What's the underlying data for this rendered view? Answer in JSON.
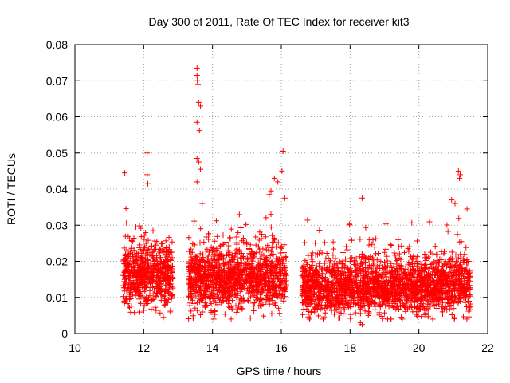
{
  "chart_data": {
    "type": "scatter",
    "title": "Day 300 of 2011, Rate Of TEC Index for receiver kit3",
    "xlabel": "GPS time / hours",
    "ylabel": "ROTI / TECUs",
    "xlim": [
      10,
      22
    ],
    "ylim": [
      0,
      0.08
    ],
    "xticks": [
      10,
      12,
      14,
      16,
      18,
      20,
      22
    ],
    "yticks": [
      0,
      0.01,
      0.02,
      0.03,
      0.04,
      0.05,
      0.06,
      0.07,
      0.08
    ],
    "xtick_labels": [
      "10",
      "12",
      "14",
      "16",
      "18",
      "20",
      "22"
    ],
    "ytick_labels": [
      "0",
      "0.01",
      "0.02",
      "0.03",
      "0.04",
      "0.05",
      "0.06",
      "0.07",
      "0.08"
    ],
    "grid": true,
    "marker": "+",
    "color": "#ff0000",
    "series": [
      {
        "name": "kit3",
        "segments": [
          {
            "x_range": [
              11.4,
              12.85
            ],
            "baseline": 0.016,
            "spread": 0.009
          },
          {
            "x_range": [
              13.3,
              16.15
            ],
            "baseline": 0.015,
            "spread": 0.009
          },
          {
            "x_range": [
              16.6,
              21.5
            ],
            "baseline": 0.013,
            "spread": 0.008
          }
        ],
        "notable_points": [
          {
            "x": 11.45,
            "y": 0.0445
          },
          {
            "x": 12.1,
            "y": 0.05
          },
          {
            "x": 12.1,
            "y": 0.044
          },
          {
            "x": 12.12,
            "y": 0.0415
          },
          {
            "x": 13.55,
            "y": 0.0735
          },
          {
            "x": 13.55,
            "y": 0.0715
          },
          {
            "x": 13.56,
            "y": 0.07
          },
          {
            "x": 13.58,
            "y": 0.069
          },
          {
            "x": 13.6,
            "y": 0.064
          },
          {
            "x": 13.65,
            "y": 0.063
          },
          {
            "x": 13.55,
            "y": 0.0585
          },
          {
            "x": 13.62,
            "y": 0.0562
          },
          {
            "x": 13.55,
            "y": 0.0485
          },
          {
            "x": 13.6,
            "y": 0.0475
          },
          {
            "x": 13.65,
            "y": 0.0455
          },
          {
            "x": 13.55,
            "y": 0.042
          },
          {
            "x": 13.7,
            "y": 0.036
          },
          {
            "x": 16.05,
            "y": 0.0505
          },
          {
            "x": 16.02,
            "y": 0.045
          },
          {
            "x": 15.8,
            "y": 0.043
          },
          {
            "x": 15.9,
            "y": 0.042
          },
          {
            "x": 15.7,
            "y": 0.0395
          },
          {
            "x": 15.65,
            "y": 0.0385
          },
          {
            "x": 16.1,
            "y": 0.0375
          },
          {
            "x": 18.35,
            "y": 0.0375
          },
          {
            "x": 21.15,
            "y": 0.045
          },
          {
            "x": 21.2,
            "y": 0.044
          },
          {
            "x": 21.18,
            "y": 0.043
          },
          {
            "x": 20.95,
            "y": 0.037
          },
          {
            "x": 21.05,
            "y": 0.036
          },
          {
            "x": 21.4,
            "y": 0.0345
          },
          {
            "x": 18.3,
            "y": 0.003
          },
          {
            "x": 18.35,
            "y": 0.0025
          }
        ]
      }
    ]
  }
}
